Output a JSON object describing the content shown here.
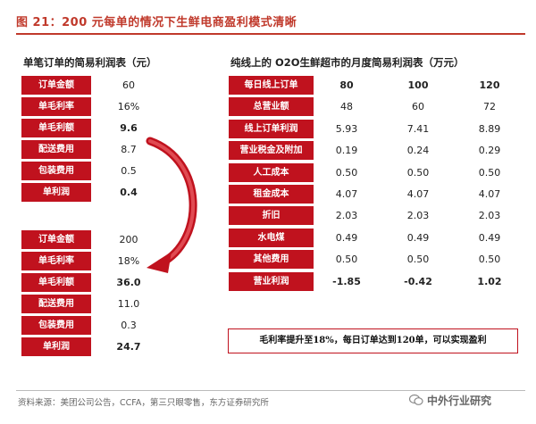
{
  "figure_title": "图 21：200 元每单的情况下生鲜电商盈利模式清晰",
  "left_section": {
    "title": "单笔订单的简易利润表（元）",
    "table_a": [
      {
        "label": "订单金额",
        "value": "60",
        "bold": false
      },
      {
        "label": "单毛利率",
        "value": "16%",
        "bold": false
      },
      {
        "label": "单毛利额",
        "value": "9.6",
        "bold": true
      },
      {
        "label": "配送费用",
        "value": "8.7",
        "bold": false
      },
      {
        "label": "包装费用",
        "value": "0.5",
        "bold": false
      },
      {
        "label": "单利润",
        "value": "0.4",
        "bold": true
      }
    ],
    "table_b": [
      {
        "label": "订单金额",
        "value": "200",
        "bold": false
      },
      {
        "label": "单毛利率",
        "value": "18%",
        "bold": false
      },
      {
        "label": "单毛利额",
        "value": "36.0",
        "bold": true
      },
      {
        "label": "配送费用",
        "value": "11.0",
        "bold": false
      },
      {
        "label": "包装费用",
        "value": "0.3",
        "bold": false
      },
      {
        "label": "单利润",
        "value": "24.7",
        "bold": true
      }
    ]
  },
  "right_section": {
    "title": "纯线上的 O2O生鲜超市的月度简易利润表（万元）",
    "rows": [
      {
        "label": "每日线上订单",
        "values": [
          "80",
          "100",
          "120"
        ],
        "bold": true
      },
      {
        "label": "总营业额",
        "values": [
          "48",
          "60",
          "72"
        ],
        "bold": false
      },
      {
        "label": "线上订单利润",
        "values": [
          "5.93",
          "7.41",
          "8.89"
        ],
        "bold": false
      },
      {
        "label": "营业税金及附加",
        "values": [
          "0.19",
          "0.24",
          "0.29"
        ],
        "bold": false
      },
      {
        "label": "人工成本",
        "values": [
          "0.50",
          "0.50",
          "0.50"
        ],
        "bold": false
      },
      {
        "label": "租金成本",
        "values": [
          "4.07",
          "4.07",
          "4.07"
        ],
        "bold": false
      },
      {
        "label": "折旧",
        "values": [
          "2.03",
          "2.03",
          "2.03"
        ],
        "bold": false
      },
      {
        "label": "水电煤",
        "values": [
          "0.49",
          "0.49",
          "0.49"
        ],
        "bold": false
      },
      {
        "label": "其他费用",
        "values": [
          "0.50",
          "0.50",
          "0.50"
        ],
        "bold": false
      },
      {
        "label": "营业利润",
        "values": [
          "-1.85",
          "-0.42",
          "1.02"
        ],
        "bold": true
      }
    ],
    "callout": "毛利率提升至18%，每日订单达到120单，可以实现盈利"
  },
  "source": "资料来源：美团公司公告，CCFA，第三只眼零售，东方证券研究所",
  "watermark": "中外行业研究",
  "colors": {
    "accent": "#c0121e",
    "title": "#c0392b"
  },
  "icons": {
    "arrow": "curved-down-arrow-icon",
    "watermark": "wechat-icon"
  }
}
